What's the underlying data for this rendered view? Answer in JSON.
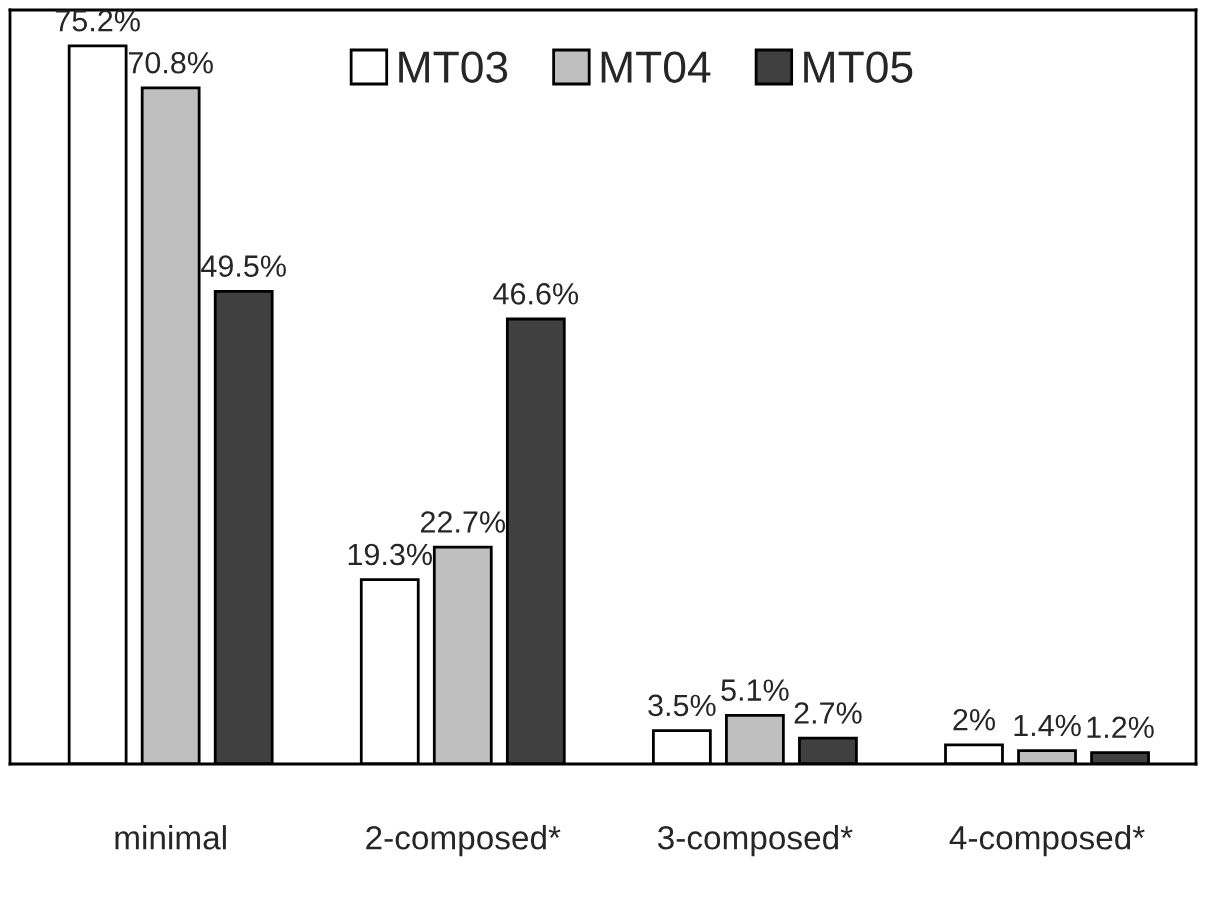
{
  "chart_data": {
    "type": "bar",
    "categories": [
      "minimal",
      "2-composed*",
      "3-composed*",
      "4-composed*"
    ],
    "series": [
      {
        "name": "MT03",
        "color": "#ffffff",
        "values": [
          75.2,
          19.3,
          3.5,
          2
        ],
        "value_labels": [
          "75.2%",
          "19.3%",
          "3.5%",
          "2%"
        ]
      },
      {
        "name": "MT04",
        "color": "#bfbfbf",
        "values": [
          70.8,
          22.7,
          5.1,
          1.4
        ],
        "value_labels": [
          "70.8%",
          "22.7%",
          "5.1%",
          "1.4%"
        ]
      },
      {
        "name": "MT05",
        "color": "#404040",
        "values": [
          49.5,
          46.6,
          2.7,
          1.2
        ],
        "value_labels": [
          "49.5%",
          "46.6%",
          "2.7%",
          "1.2%"
        ]
      }
    ],
    "legend": "top",
    "grid": false
  }
}
